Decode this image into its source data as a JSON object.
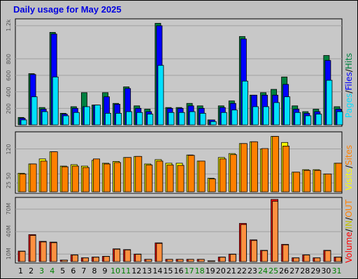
{
  "title": "Daily usage for May 2025",
  "colors": {
    "hits": "#008040",
    "files": "#0000ff",
    "pages": "#00e0ff",
    "visits": "#ffff00",
    "sites": "#ff8000",
    "kbytes": "#ff0000",
    "in": "#c0c000",
    "out": "#ff8000",
    "weekend_day": "#008000",
    "weekday_day": "#000000",
    "frame_bg": "#c0c0c0",
    "panel_bg": "#c8c8c8"
  },
  "legend": {
    "top": [
      "Pages",
      "Files",
      "Hits"
    ],
    "middle": [
      "Visits",
      "Sites"
    ],
    "bottom": [
      "Volume",
      "IN",
      "OUT"
    ],
    "sep": "/"
  },
  "axis_labels": {
    "top": [
      "200",
      "400",
      "600",
      "800",
      "1.2k"
    ],
    "middle": [
      "25",
      "50",
      "120"
    ],
    "bottom": [
      "10M",
      "40M",
      "70M"
    ]
  },
  "chart_data": [
    {
      "type": "bar",
      "panel": "requests",
      "categories": [
        "1",
        "2",
        "3",
        "4",
        "5",
        "6",
        "7",
        "8",
        "9",
        "10",
        "11",
        "12",
        "13",
        "14",
        "15",
        "16",
        "17",
        "18",
        "19",
        "20",
        "21",
        "22",
        "23",
        "24",
        "25",
        "26",
        "27",
        "28",
        "29",
        "30",
        "31"
      ],
      "ylim": [
        0,
        1250
      ],
      "series": [
        {
          "name": "Hits",
          "values": [
            90,
            620,
            210,
            1120,
            140,
            220,
            390,
            240,
            390,
            260,
            460,
            230,
            190,
            1230,
            210,
            210,
            260,
            230,
            60,
            230,
            290,
            1070,
            360,
            390,
            430,
            580,
            230,
            160,
            190,
            840,
            220
          ]
        },
        {
          "name": "Files",
          "values": [
            80,
            610,
            190,
            1100,
            130,
            200,
            220,
            240,
            340,
            250,
            440,
            200,
            160,
            1200,
            200,
            200,
            230,
            200,
            60,
            210,
            260,
            1040,
            360,
            360,
            360,
            490,
            190,
            140,
            160,
            780,
            190
          ]
        },
        {
          "name": "Pages",
          "values": [
            60,
            340,
            160,
            580,
            110,
            150,
            220,
            240,
            140,
            140,
            160,
            150,
            130,
            720,
            150,
            150,
            160,
            140,
            40,
            150,
            180,
            530,
            220,
            220,
            270,
            340,
            150,
            110,
            130,
            540,
            160
          ]
        }
      ]
    },
    {
      "type": "bar",
      "panel": "visitors",
      "categories": [
        "1",
        "2",
        "3",
        "4",
        "5",
        "6",
        "7",
        "8",
        "9",
        "10",
        "11",
        "12",
        "13",
        "14",
        "15",
        "16",
        "17",
        "18",
        "19",
        "20",
        "21",
        "22",
        "23",
        "24",
        "25",
        "26",
        "27",
        "28",
        "29",
        "30",
        "31"
      ],
      "ylim": [
        0,
        160
      ],
      "series": [
        {
          "name": "Visits",
          "values": [
            52,
            78,
            92,
            112,
            72,
            76,
            72,
            88,
            80,
            85,
            96,
            99,
            78,
            90,
            80,
            80,
            103,
            86,
            38,
            96,
            107,
            135,
            140,
            120,
            155,
            138,
            55,
            62,
            62,
            50,
            80
          ]
        },
        {
          "name": "Sites",
          "values": [
            50,
            78,
            86,
            112,
            70,
            72,
            68,
            92,
            78,
            82,
            96,
            99,
            75,
            86,
            75,
            74,
            102,
            86,
            36,
            92,
            104,
            135,
            140,
            121,
            155,
            128,
            55,
            60,
            60,
            50,
            80
          ]
        }
      ]
    },
    {
      "type": "bar",
      "panel": "volume",
      "categories": [
        "1",
        "2",
        "3",
        "4",
        "5",
        "6",
        "7",
        "8",
        "9",
        "10",
        "11",
        "12",
        "13",
        "14",
        "15",
        "16",
        "17",
        "18",
        "19",
        "20",
        "21",
        "22",
        "23",
        "24",
        "25",
        "26",
        "27",
        "28",
        "29",
        "30",
        "31"
      ],
      "ylim": [
        0,
        82
      ],
      "series": [
        {
          "name": "Volume",
          "values": [
            14,
            36,
            27,
            26,
            2,
            9,
            5,
            6,
            7,
            17,
            16,
            10,
            3,
            25,
            3,
            3,
            3,
            3,
            1,
            6,
            10,
            51,
            29,
            15,
            83,
            23,
            5,
            9,
            5,
            15,
            6
          ]
        }
      ]
    }
  ]
}
